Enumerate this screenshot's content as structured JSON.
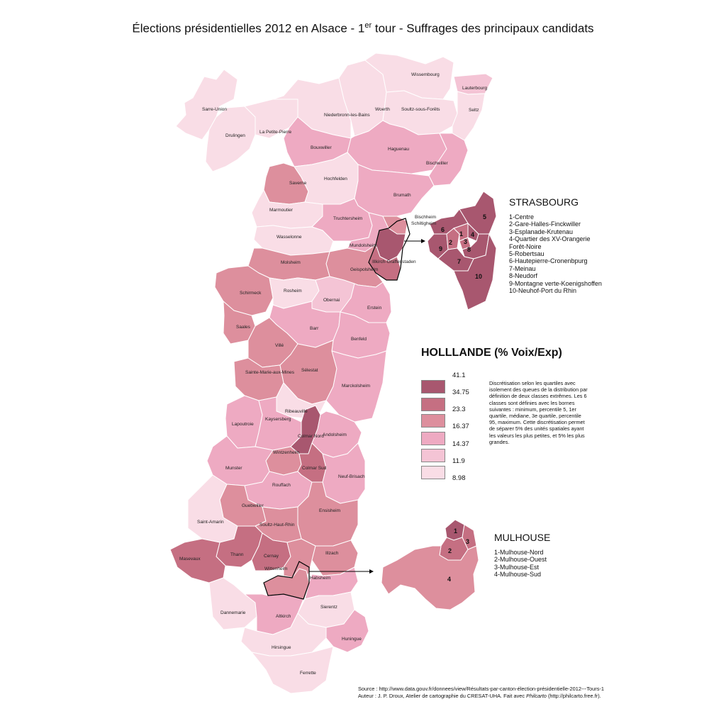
{
  "title": {
    "before": "Élections présidentielles 2012 en Alsace - 1",
    "sup": "er",
    "after": " tour - Suffrages des principaux candidats"
  },
  "colors": {
    "c1": "#a8576f",
    "c2": "#c56f82",
    "c3": "#dd8f9d",
    "c4": "#eeaac2",
    "c5": "#f4c4d5",
    "c6": "#f9dde6",
    "border": "#ffffff",
    "outline": "#000000"
  },
  "cantons": {
    "sarre_union": "Sarre-Union",
    "drulingen": "Drulingen",
    "la_petite_pierre": "La Petite-Pierre",
    "niederbronn": "Niederbronn-les-Bains",
    "woerth": "Woerth",
    "wissembourg": "Wissembourg",
    "lauterbourg": "Lauterbourg",
    "soultz_forets": "Soultz-sous-Forêts",
    "seltz": "Seltz",
    "bouxwiller": "Bouxwiller",
    "haguenau": "Haguenau",
    "bischwiller": "Bischwiller",
    "saverne": "Saverne",
    "hochfelden": "Hochfelden",
    "brumath": "Brumath",
    "marmoutier": "Marmoutier",
    "truchtersheim": "Truchtersheim",
    "wasselonne": "Wasselonne",
    "bischheim": "Bischheim",
    "schiltigheim": "Schiltigheim",
    "mundolsheim": "Mundolsheim",
    "illkirch": "Illkirch-Graffenstaden",
    "geispolsheim": "Geispolsheim",
    "molsheim": "Molsheim",
    "schirmeck": "Schirmeck",
    "rosheim": "Rosheim",
    "obernai": "Obernai",
    "erstein": "Erstein",
    "saales": "Saales",
    "barr": "Barr",
    "villé": "Villé",
    "benfeld": "Benfeld",
    "sainte_marie": "Sainte-Marie-aux-Mines",
    "selestat": "Sélestat",
    "marckolsheim": "Marckolsheim",
    "ribeauville": "Ribeauvillé",
    "lapoutroie": "Lapoutroie",
    "kaysersberg": "Kaysersberg",
    "colmar_nord": "Colmar Nord",
    "andolsheim": "Andolsheim",
    "wintzenheim": "Wintzenheim",
    "colmar_sud": "Colmar Sud",
    "munster": "Munster",
    "neuf_brisach": "Neuf-Brisach",
    "rouffach": "Rouffach",
    "guebwiller": "Guebwiller",
    "ensisheim": "Ensisheim",
    "soultz_haut_rhin": "Soultz-Haut-Rhin",
    "saint_amarin": "Saint-Amarin",
    "thann": "Thann",
    "cernay": "Cernay",
    "masevaux": "Masevaux",
    "wittenheim": "Wittenheim",
    "illzach": "Illzach",
    "habsheim": "Habsheim",
    "dannemarie": "Dannemarie",
    "altkirch": "Altkirch",
    "sierentz": "Sierentz",
    "huningue": "Huningue",
    "hirsingue": "Hirsingue",
    "ferrette": "Ferrette"
  },
  "strasbourg": {
    "title": "STRASBOURG",
    "numbers": [
      "1",
      "2",
      "3",
      "4",
      "5",
      "6",
      "7",
      "8",
      "9",
      "10"
    ],
    "items": [
      "1-Centre",
      "2-Gare-Halles-Finckwiller",
      "3-Esplanade-Krutenau",
      "4-Quartier des XV-Orangerie",
      "Forêt-Noire",
      "5-Robertsau",
      "6-Hautepierre-Cronenbpurg",
      "7-Meinau",
      "8-Neudorf",
      "9-Montagne verte-Koenigshoffen",
      "10-Neuhof-Port du Rhin"
    ]
  },
  "mulhouse": {
    "title": "MULHOUSE",
    "numbers": [
      "1",
      "2",
      "3",
      "4"
    ],
    "items": [
      "1-Mulhouse-Nord",
      "2-Mulhouse-Ouest",
      "3-Mulhouse-Est",
      "4-Mulhouse-Sud"
    ]
  },
  "legend": {
    "title": "HOLLLANDE (% Voix/Exp)",
    "breaks": [
      "41.1",
      "34.75",
      "23.3",
      "16.37",
      "14.37",
      "11.9",
      "8.98"
    ],
    "note": "Discrétisation selon les quartiles avec isolement des queues de la distribution par définition de deux classes extrêmes. Les 6 classes sont définies avec les bornes suivantes : minimum, percentile 5, 1er quartile, médiane, 3e quartile, percentile 95, maximum. Cette discrétisation permet de séparer 5% des unités spatiales ayant les valeurs les plus petites, et 5% les plus grandes."
  },
  "source": {
    "line1": "Source : http://www.data.gouv.fr/donnees/view/Résultats-par-canton-élection-présidentielle-2012---Tours-1",
    "line2_a": "Auteur : J. P. Droux, Atelier de cartographie du CRESAT-UHA. Fait avec ",
    "line2_b": "Philcarto",
    "line2_c": " (http://philcarto.free.fr)."
  }
}
